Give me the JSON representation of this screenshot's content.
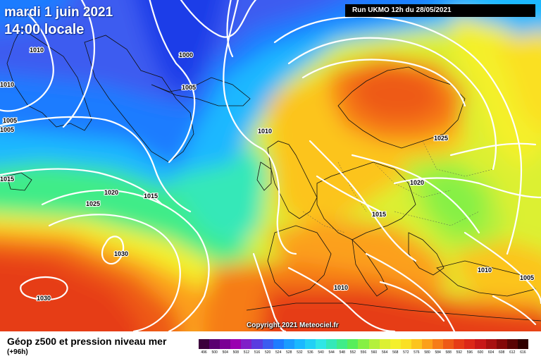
{
  "header": {
    "date_line": "mardi 1 juin 2021",
    "time_line": "14:00 locale",
    "run_info": "Run UKMO 12h du 28/05/2021"
  },
  "footer": {
    "title": "Géop z500 et pression niveau mer",
    "subtitle": "(+96h)",
    "copyright": "Copyright 2021 Meteociel.fr"
  },
  "legend": {
    "ticks": [
      "496",
      "500",
      "504",
      "508",
      "512",
      "516",
      "520",
      "524",
      "528",
      "532",
      "536",
      "540",
      "544",
      "548",
      "552",
      "556",
      "560",
      "564",
      "568",
      "572",
      "576",
      "580",
      "584",
      "588",
      "592",
      "596",
      "600",
      "604",
      "608",
      "612",
      "616"
    ],
    "colors": [
      "#3c003c",
      "#5a0070",
      "#7a0094",
      "#9a00b0",
      "#8020c8",
      "#5a3ce0",
      "#3c5cf0",
      "#1e7cff",
      "#1a9cff",
      "#1ab8ff",
      "#22d0f5",
      "#30e6e6",
      "#34e8b8",
      "#40ec88",
      "#58ee5a",
      "#86f044",
      "#b4f03c",
      "#dcf032",
      "#f4f02c",
      "#fae024",
      "#fcc41e",
      "#fca01a",
      "#f67c18",
      "#ee5a16",
      "#e63c16",
      "#dc2818",
      "#c81818",
      "#a81010",
      "#840808",
      "#5a0404",
      "#300000"
    ]
  },
  "isobar_labels": [
    "1010",
    "1000",
    "1005",
    "1010",
    "1005",
    "1010",
    "1015",
    "1020",
    "1025",
    "1015",
    "1030",
    "1030",
    "1020",
    "1015",
    "1025",
    "1010",
    "1010",
    "1005",
    "1005"
  ]
}
